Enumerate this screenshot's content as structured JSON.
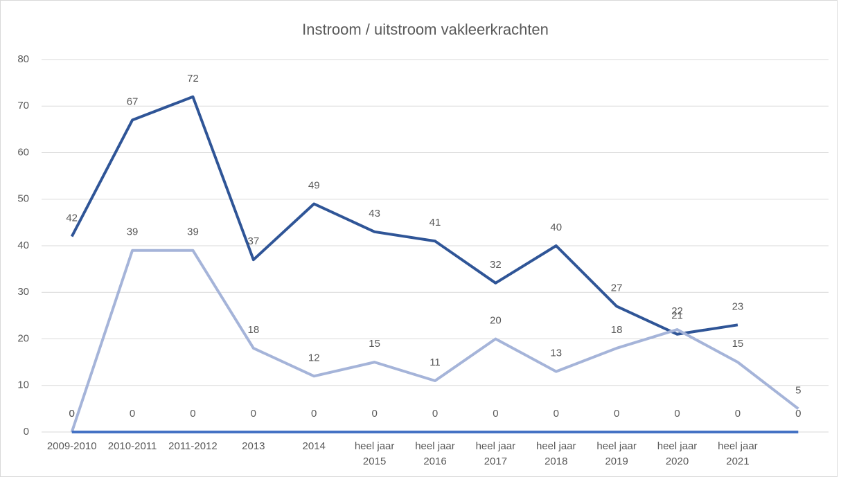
{
  "chart_data": {
    "type": "line",
    "title": "Instroom / uitstroom vakleerkrachten",
    "categories": [
      "2009-2010",
      "2010-2011",
      "2011-2012",
      "2013",
      "2014",
      "heel jaar 2015",
      "heel jaar 2016",
      "heel jaar 2017",
      "heel jaar 2018",
      "heel jaar 2019",
      "heel jaar 2020",
      "heel jaar 2021",
      null
    ],
    "series": [
      {
        "color": "#2f5597",
        "values": [
          42,
          67,
          72,
          37,
          49,
          43,
          41,
          32,
          40,
          27,
          21,
          23,
          null
        ]
      },
      {
        "color": "#a5b4d9",
        "values": [
          0,
          39,
          39,
          18,
          12,
          15,
          11,
          20,
          13,
          18,
          22,
          15,
          5
        ]
      },
      {
        "color": "#4472c4",
        "values": [
          0,
          0,
          0,
          0,
          0,
          0,
          0,
          0,
          0,
          0,
          0,
          0,
          0
        ]
      }
    ],
    "ylim": [
      0,
      80
    ],
    "yticks": [
      0,
      10,
      20,
      30,
      40,
      50,
      60,
      70,
      80
    ],
    "grid": true
  }
}
